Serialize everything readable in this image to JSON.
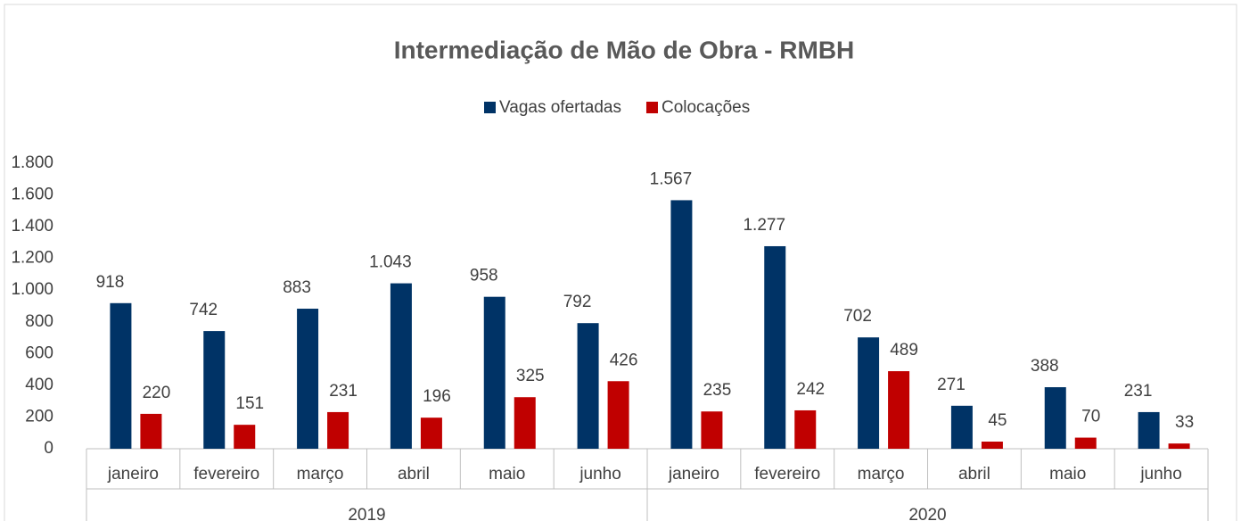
{
  "chart_data": {
    "type": "bar",
    "title": "Intermediação de Mão de Obra - RMBH",
    "categories": [
      "janeiro",
      "fevereiro",
      "março",
      "abril",
      "maio",
      "junho",
      "janeiro",
      "fevereiro",
      "março",
      "abril",
      "maio",
      "junho"
    ],
    "group_labels": [
      "2019",
      "2020"
    ],
    "series": [
      {
        "name": "Vagas ofertadas",
        "color": "#003366",
        "values": [
          918,
          742,
          883,
          1043,
          958,
          792,
          1567,
          1277,
          702,
          271,
          388,
          231
        ],
        "value_labels": [
          "918",
          "742",
          "883",
          "1.043",
          "958",
          "792",
          "1.567",
          "1.277",
          "702",
          "271",
          "388",
          "231"
        ]
      },
      {
        "name": "Colocações",
        "color": "#c00000",
        "values": [
          220,
          151,
          231,
          196,
          325,
          426,
          235,
          242,
          489,
          45,
          70,
          33
        ]
      }
    ],
    "ylim": [
      0,
      1800
    ],
    "yticks": [
      0,
      200,
      400,
      600,
      800,
      {
        "value": 1000,
        "label": "1.000"
      },
      {
        "value": 1200,
        "label": "1.200"
      },
      {
        "value": 1400,
        "label": "1.400"
      },
      {
        "value": 1600,
        "label": "1.600"
      },
      {
        "value": 1800,
        "label": "1.800"
      }
    ],
    "grid": false,
    "legend": "top"
  }
}
